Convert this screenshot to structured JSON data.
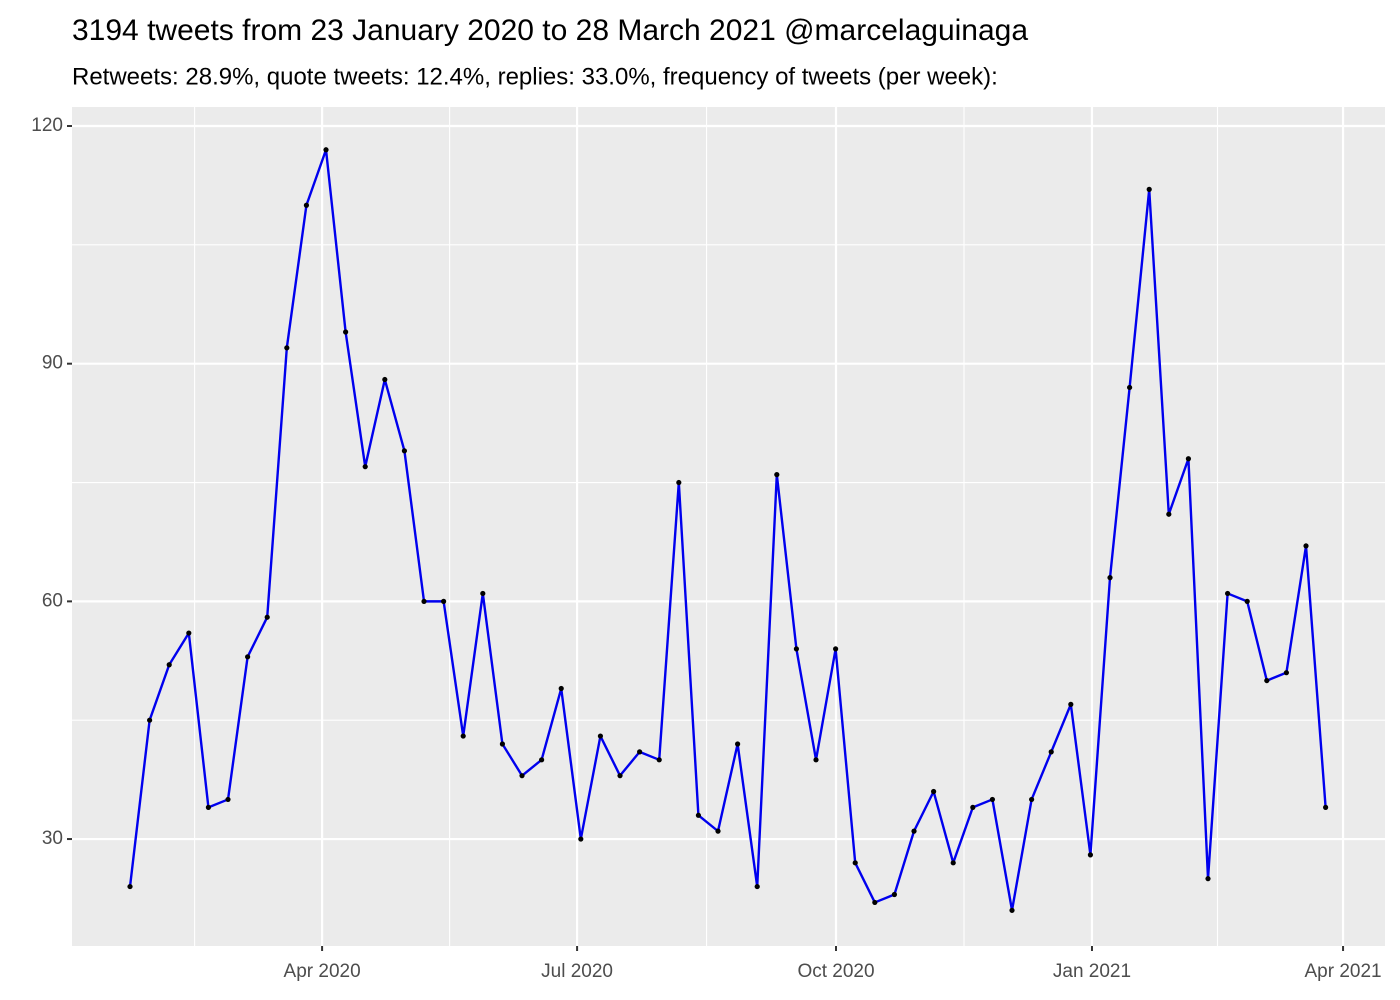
{
  "chart_data": {
    "type": "line",
    "title": "3194 tweets from 23 January 2020 to 28 March 2021 @marcelaguinaga",
    "subtitle": "Retweets: 28.9%, quote tweets: 12.4%, replies: 33.0%, frequency of tweets (per week):",
    "categories": [
      null,
      null,
      null,
      null,
      null,
      null,
      null,
      null,
      null,
      null,
      null,
      null,
      null,
      null,
      null,
      null,
      null,
      null,
      null,
      null,
      null,
      null,
      null,
      null,
      null,
      null,
      null,
      null,
      null,
      null,
      null,
      null,
      null,
      null,
      null,
      null,
      null,
      null,
      null,
      null,
      null,
      null,
      null,
      null,
      null,
      null,
      null,
      null,
      null,
      null,
      null,
      null,
      null,
      null,
      null,
      null,
      null,
      null,
      null,
      null,
      null,
      null
    ],
    "series": [
      {
        "color": "#0000ee",
        "marker_color": "#000000",
        "values": [
          24,
          45,
          52,
          56,
          34,
          35,
          53,
          58,
          92,
          110,
          117,
          94,
          77,
          88,
          79,
          60,
          60,
          43,
          61,
          42,
          38,
          40,
          49,
          30,
          43,
          38,
          41,
          40,
          75,
          33,
          31,
          42,
          24,
          76,
          54,
          40,
          54,
          27,
          22,
          23,
          31,
          36,
          27,
          34,
          35,
          21,
          35,
          41,
          47,
          28,
          63,
          87,
          112,
          71,
          78,
          25,
          61,
          60,
          50,
          51,
          67,
          34
        ]
      }
    ],
    "xlim": [
      -2.96,
      64.03
    ],
    "xticks": [
      {
        "value": 9.8,
        "label": "Apr 2020"
      },
      {
        "value": 22.81,
        "label": "Jul 2020"
      },
      {
        "value": 36.02,
        "label": "Oct 2020"
      },
      {
        "value": 49.08,
        "label": "Jan 2021"
      },
      {
        "value": 61.89,
        "label": "Apr 2021"
      }
    ],
    "ylim": [
      16.5,
      122.4
    ],
    "yticks": [
      30,
      60,
      90,
      120
    ],
    "grid": true
  }
}
